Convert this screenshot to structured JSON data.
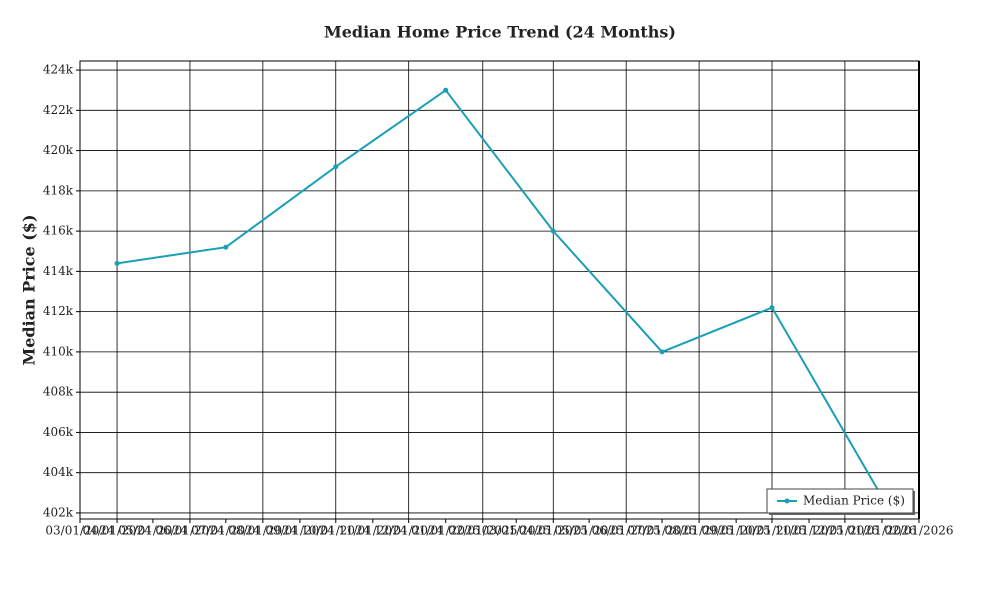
{
  "chart_data": {
    "type": "line",
    "title": "Median Home Price Trend (24 Months)",
    "y_label": "Median Price ($)",
    "x": [
      "04/01/2024",
      "07/01/2024",
      "10/01/2024",
      "01/01/2025",
      "04/01/2025",
      "07/01/2025",
      "10/01/2025",
      "01/01/2026"
    ],
    "series": [
      {
        "name": "Median Price ($)",
        "color": "#1a9fb5",
        "values": [
          414400,
          415200,
          419200,
          423000,
          416000,
          410000,
          412200,
          402800
        ]
      }
    ],
    "xlim": [
      "03/01/2024",
      "02/01/2026"
    ],
    "xticks": [
      "03/01/2024",
      "04/01/2024",
      "05/01/2024",
      "06/01/2024",
      "07/01/2024",
      "08/01/2024",
      "09/01/2024",
      "10/01/2024",
      "11/01/2024",
      "12/01/2024",
      "01/01/2025",
      "02/01/2025",
      "03/01/2025",
      "04/01/2025",
      "05/01/2025",
      "06/01/2025",
      "07/01/2025",
      "08/01/2025",
      "09/01/2025",
      "10/01/2025",
      "11/01/2025",
      "12/01/2025",
      "01/01/2026",
      "02/01/2026"
    ],
    "ylim": [
      401700,
      424450
    ],
    "yticks": [
      {
        "value": 402000,
        "label": "402k"
      },
      {
        "value": 404000,
        "label": "404k"
      },
      {
        "value": 406000,
        "label": "406k"
      },
      {
        "value": 408000,
        "label": "408k"
      },
      {
        "value": 410000,
        "label": "410k"
      },
      {
        "value": 412000,
        "label": "412k"
      },
      {
        "value": 414000,
        "label": "414k"
      },
      {
        "value": 416000,
        "label": "416k"
      },
      {
        "value": 418000,
        "label": "418k"
      },
      {
        "value": 420000,
        "label": "420k"
      },
      {
        "value": 422000,
        "label": "422k"
      },
      {
        "value": 424000,
        "label": "424k"
      }
    ],
    "grid": true,
    "legend": "lower right"
  }
}
